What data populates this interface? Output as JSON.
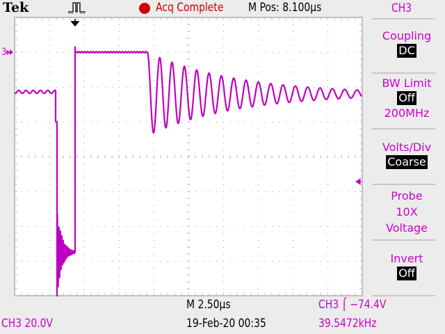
{
  "header": {
    "brand": "Tek",
    "status": "Acq Complete",
    "status_indicator_color": "#cc0000",
    "mpos": "M Pos: 8.100µs",
    "channel": "CH3"
  },
  "menu": {
    "coupling_label": "Coupling",
    "coupling_value": "DC",
    "bw_label": "BW Limit",
    "bw_value": "Off",
    "bw_freq": "200MHz",
    "voltsdiv_label": "Volts/Div",
    "voltsdiv_value": "Coarse",
    "probe_label": "Probe",
    "probe_value": "10X",
    "probe_type": "Voltage",
    "invert_label": "Invert",
    "invert_value": "Off"
  },
  "footer": {
    "timebase": "M 2.50µs",
    "trigger": "CH3 ⌠ −74.4V",
    "ch_scale": "CH3  20.0V",
    "datetime": "19-Feb-20 00:35",
    "frequency": "39.5472kHz"
  },
  "markers": {
    "ground_label": "3▸",
    "trigger_level_icon": "left-arrow",
    "trigger_position_icon": "down-arrow"
  },
  "colors": {
    "trace": "#c000c0",
    "text": "#cc00cc"
  },
  "chart_data": {
    "type": "line",
    "title": "",
    "xlabel": "",
    "ylabel": "",
    "volts_per_div": 20,
    "time_per_div_us": 2.5,
    "xlim": [
      -4.35,
      20.65
    ],
    "ylim": [
      -140,
      20
    ],
    "grid": true,
    "trigger_level_v": -74.4,
    "series": [
      {
        "segments": [
          {
            "kind": "level",
            "t": [
              -4.35,
              -1.4
            ],
            "v": -22.8
          },
          {
            "kind": "step",
            "t": -1.4,
            "v": [
              -22.8,
              -40
            ]
          },
          {
            "kind": "step",
            "t": -1.3,
            "v": [
              -40,
              -140
            ]
          },
          {
            "kind": "ringing",
            "t": [
              -1.3,
              -0.05
            ],
            "center_v": -115,
            "amplitude_v": 25
          },
          {
            "kind": "step",
            "t": 0,
            "v": [
              -115,
              3
            ]
          },
          {
            "kind": "level",
            "t": [
              0,
              5.2
            ],
            "v": 0
          },
          {
            "kind": "damped_oscillation",
            "t": [
              5.2,
              20.6
            ],
            "center_v": -24,
            "amplitude_v": 24,
            "period_us": 0.887,
            "decay_us": 6.4
          }
        ]
      }
    ]
  }
}
